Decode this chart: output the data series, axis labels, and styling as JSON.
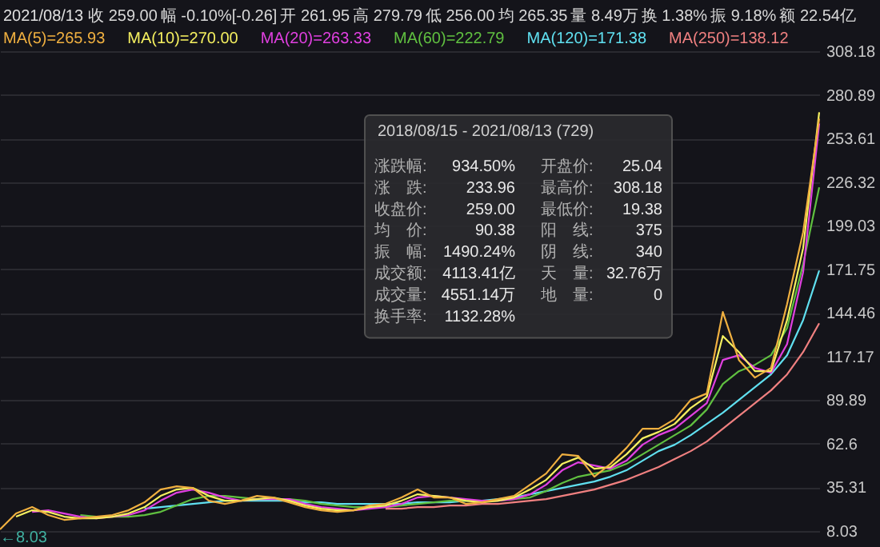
{
  "chart_data": {
    "type": "line",
    "title": "2021/08/13",
    "subtitle": "2018/08/15 - 2021/08/13 (729)",
    "categories": [
      null,
      null,
      null,
      null,
      null,
      null,
      null,
      null,
      null,
      null,
      null,
      null,
      null,
      null,
      null,
      null,
      null,
      null,
      null,
      null,
      null,
      null,
      null,
      null,
      null,
      null,
      null,
      null,
      null,
      null,
      null,
      null,
      null,
      null,
      null,
      null,
      null,
      null,
      null,
      null,
      null,
      null,
      null,
      null,
      null,
      null,
      null,
      null,
      null,
      null,
      null,
      null
    ],
    "series": [
      {
        "name": "MA(250)=138.12",
        "color": "#f08080",
        "values": [
          null,
          null,
          null,
          null,
          null,
          null,
          null,
          null,
          null,
          null,
          null,
          null,
          null,
          null,
          null,
          null,
          null,
          null,
          null,
          null,
          null,
          null,
          null,
          null,
          22,
          22,
          23,
          23,
          24,
          24,
          25,
          25,
          26,
          27,
          28,
          30,
          32,
          34,
          37,
          40,
          44,
          48,
          53,
          58,
          64,
          72,
          80,
          88,
          96,
          106,
          120,
          138
        ]
      },
      {
        "name": "MA(120)=171.38",
        "color": "#60e0f0",
        "values": [
          null,
          null,
          null,
          null,
          null,
          null,
          null,
          null,
          null,
          22,
          23,
          24,
          25,
          26,
          27,
          27,
          27,
          27,
          27,
          26,
          26,
          25,
          25,
          25,
          25,
          25,
          26,
          26,
          26,
          27,
          27,
          28,
          29,
          31,
          33,
          35,
          37,
          39,
          42,
          46,
          52,
          58,
          62,
          68,
          75,
          82,
          90,
          98,
          106,
          118,
          140,
          171
        ]
      },
      {
        "name": "MA(60)=222.79",
        "color": "#60c040",
        "values": [
          null,
          null,
          null,
          null,
          null,
          18,
          17,
          17,
          17,
          18,
          20,
          24,
          28,
          30,
          30,
          29,
          28,
          28,
          28,
          27,
          25,
          24,
          23,
          23,
          23,
          24,
          25,
          26,
          27,
          27,
          27,
          27,
          28,
          29,
          33,
          38,
          42,
          44,
          46,
          50,
          56,
          62,
          68,
          74,
          84,
          100,
          108,
          112,
          118,
          135,
          175,
          223
        ]
      },
      {
        "name": "MA(20)=263.33",
        "color": "#e040e0",
        "values": [
          null,
          null,
          20,
          21,
          19,
          17,
          16,
          17,
          18,
          21,
          27,
          32,
          34,
          32,
          29,
          27,
          28,
          28,
          28,
          25,
          23,
          22,
          21,
          22,
          23,
          25,
          29,
          30,
          29,
          28,
          27,
          27,
          28,
          31,
          37,
          46,
          51,
          49,
          47,
          52,
          62,
          68,
          72,
          80,
          88,
          115,
          118,
          110,
          107,
          125,
          170,
          263
        ]
      },
      {
        "name": "MA(10)=270.00",
        "color": "#f5f060",
        "values": [
          null,
          17,
          21,
          20,
          17,
          16,
          16,
          17,
          19,
          23,
          30,
          34,
          35,
          30,
          27,
          27,
          28,
          29,
          27,
          24,
          22,
          21,
          21,
          23,
          24,
          27,
          31,
          30,
          29,
          27,
          26,
          27,
          29,
          34,
          40,
          50,
          54,
          47,
          48,
          56,
          66,
          70,
          75,
          85,
          92,
          130,
          120,
          108,
          108,
          140,
          185,
          270
        ]
      },
      {
        "name": "MA(5)=265.93",
        "color": "#f0b040",
        "values": [
          9,
          19,
          23,
          18,
          15,
          16,
          17,
          18,
          21,
          26,
          34,
          36,
          35,
          27,
          25,
          27,
          30,
          29,
          26,
          23,
          21,
          20,
          21,
          24,
          25,
          29,
          34,
          29,
          29,
          25,
          26,
          28,
          30,
          37,
          44,
          56,
          55,
          42,
          50,
          60,
          72,
          72,
          78,
          90,
          94,
          145,
          115,
          104,
          110,
          150,
          195,
          266
        ]
      }
    ],
    "ylim": [
      8.03,
      308.18
    ],
    "yticks": [
      8.03,
      35.31,
      62.6,
      89.89,
      117.17,
      144.46,
      171.75,
      199.03,
      226.32,
      253.61,
      280.89,
      308.18
    ],
    "grid": "y",
    "legend": "top left",
    "line_style": "solid",
    "marker": "none",
    "annotations": [
      "收 259.00",
      "幅 -0.10%[-0.26]",
      "开 261.95",
      "高 279.79",
      "低 256.00",
      "均 265.35",
      "量 8.49万",
      "换 1.38%",
      "振 9.18%",
      "额 22.54亿",
      "涨跌幅:",
      "934.50%",
      "开盘价:",
      "25.04",
      "涨　跌:",
      "233.96",
      "最高价:",
      "308.18",
      "收盘价:",
      "259.00",
      "最低价:",
      "19.38",
      "均　价:",
      "90.38",
      "阳　线:",
      "375",
      "振　幅:",
      "1490.24%",
      "阴　线:",
      "340",
      "成交额:",
      "4113.41亿",
      "天　量:",
      "32.76万",
      "成交量:",
      "4551.14万",
      "地　量:",
      "0",
      "换手率:",
      "1132.28%",
      "←8.03"
    ]
  }
}
